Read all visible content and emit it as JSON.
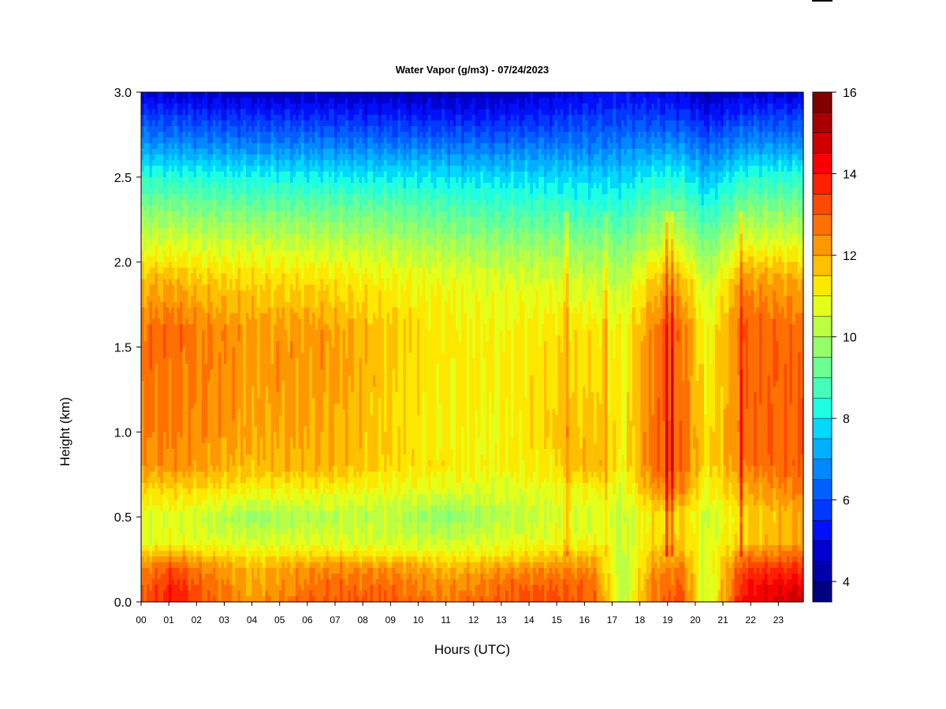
{
  "chart_data": {
    "type": "heatmap",
    "title": "Water Vapor (g/m3) - 07/24/2023",
    "xlabel": "Hours (UTC)",
    "ylabel": "Height (km)",
    "x_ticks": [
      "00",
      "01",
      "02",
      "03",
      "04",
      "05",
      "06",
      "07",
      "08",
      "09",
      "10",
      "11",
      "12",
      "13",
      "14",
      "15",
      "16",
      "17",
      "18",
      "19",
      "20",
      "21",
      "22",
      "23"
    ],
    "y_ticks": [
      "0.0",
      "0.5",
      "1.0",
      "1.5",
      "2.0",
      "2.5",
      "3.0"
    ],
    "xlim": [
      0,
      23.9
    ],
    "ylim": [
      0,
      3.0
    ],
    "colorbar": {
      "ticks": [
        "4",
        "6",
        "8",
        "10",
        "12",
        "14",
        "16"
      ],
      "min": 3.5,
      "max": 16,
      "levels": 25,
      "colors": [
        "#000080",
        "#0000a8",
        "#0000d0",
        "#0010f8",
        "#0038ff",
        "#0060ff",
        "#0088ff",
        "#00b0ff",
        "#00d8ff",
        "#1cffe2",
        "#44ffba",
        "#6cff92",
        "#94ff6a",
        "#bcff42",
        "#e4ff1a",
        "#ffe800",
        "#ffc000",
        "#ff9800",
        "#ff7000",
        "#ff4800",
        "#ff2000",
        "#f80000",
        "#d00000",
        "#a80000",
        "#800000"
      ]
    },
    "profile_heights_km": [
      0.0,
      0.1,
      0.2,
      0.28,
      0.35,
      0.5,
      0.65,
      0.8,
      1.0,
      1.3,
      1.6,
      1.9,
      2.1,
      2.3,
      2.5,
      2.7,
      2.85,
      3.0
    ],
    "profiles": [
      {
        "hour": 0,
        "values": [
          13.0,
          12.8,
          12.4,
          11.6,
          10.8,
          10.6,
          11.3,
          12.2,
          12.5,
          12.6,
          12.7,
          11.8,
          10.6,
          9.6,
          8.4,
          6.8,
          5.8,
          4.8
        ]
      },
      {
        "hour": 1.2,
        "values": [
          14.0,
          13.8,
          13.2,
          12.0,
          10.9,
          10.7,
          11.4,
          12.4,
          12.6,
          12.7,
          12.9,
          11.9,
          10.7,
          9.6,
          8.4,
          6.8,
          5.8,
          4.8
        ]
      },
      {
        "hour": 2,
        "values": [
          13.2,
          13.0,
          12.6,
          11.6,
          10.8,
          10.5,
          11.3,
          12.2,
          12.4,
          12.5,
          12.6,
          11.6,
          10.6,
          9.5,
          8.3,
          6.7,
          5.7,
          4.7
        ]
      },
      {
        "hour": 4,
        "values": [
          12.2,
          12.0,
          11.8,
          11.2,
          10.6,
          9.8,
          11.0,
          11.8,
          12.0,
          12.2,
          12.2,
          11.4,
          10.5,
          9.4,
          8.2,
          6.6,
          5.6,
          4.6
        ]
      },
      {
        "hour": 6.5,
        "values": [
          13.0,
          12.8,
          12.4,
          11.4,
          10.7,
          10.2,
          11.0,
          12.0,
          12.0,
          12.2,
          12.2,
          11.3,
          10.4,
          9.3,
          8.1,
          6.6,
          5.6,
          4.6
        ]
      },
      {
        "hour": 9,
        "values": [
          13.0,
          12.8,
          12.3,
          11.2,
          10.6,
          10.2,
          10.8,
          11.4,
          11.5,
          11.6,
          11.6,
          11.0,
          10.2,
          9.2,
          8.0,
          6.5,
          5.5,
          4.5
        ]
      },
      {
        "hour": 11,
        "values": [
          12.6,
          12.3,
          11.8,
          11.0,
          10.5,
          9.6,
          10.6,
          11.2,
          11.0,
          11.1,
          11.2,
          10.8,
          10.0,
          9.0,
          7.9,
          6.4,
          5.4,
          4.4
        ]
      },
      {
        "hour": 13,
        "values": [
          13.0,
          12.8,
          12.2,
          11.2,
          10.7,
          10.2,
          10.6,
          11.0,
          11.0,
          11.0,
          11.0,
          10.6,
          9.8,
          8.8,
          7.8,
          6.4,
          5.4,
          4.5
        ]
      },
      {
        "hour": 15,
        "values": [
          13.2,
          13.0,
          12.4,
          11.6,
          10.9,
          10.6,
          10.8,
          11.3,
          11.6,
          11.4,
          11.3,
          10.6,
          9.8,
          8.8,
          7.8,
          6.5,
          5.6,
          4.8
        ]
      },
      {
        "hour": 16.3,
        "values": [
          13.0,
          12.8,
          12.4,
          11.8,
          11.0,
          10.6,
          11.0,
          12.0,
          11.8,
          11.4,
          11.2,
          10.4,
          9.6,
          8.6,
          7.7,
          6.5,
          5.8,
          5.0
        ]
      },
      {
        "hour": 17.4,
        "values": [
          10.2,
          10.0,
          10.0,
          10.2,
          10.4,
          10.3,
          10.6,
          11.0,
          11.0,
          11.0,
          10.9,
          10.2,
          9.5,
          8.6,
          7.7,
          6.6,
          5.9,
          5.2
        ]
      },
      {
        "hour": 18.5,
        "values": [
          12.8,
          12.6,
          12.2,
          11.8,
          11.4,
          11.2,
          12.2,
          12.8,
          12.8,
          12.6,
          12.6,
          11.6,
          10.4,
          9.4,
          8.2,
          6.8,
          5.8,
          5.0
        ]
      },
      {
        "hour": 19.5,
        "values": [
          13.2,
          13.0,
          12.6,
          12.0,
          11.6,
          11.4,
          12.4,
          13.0,
          13.0,
          12.9,
          12.8,
          11.8,
          10.5,
          9.4,
          8.2,
          6.8,
          5.8,
          4.9
        ]
      },
      {
        "hour": 20.4,
        "values": [
          10.2,
          10.2,
          10.4,
          10.6,
          10.6,
          10.4,
          10.8,
          11.2,
          11.2,
          11.0,
          10.8,
          10.2,
          9.4,
          8.4,
          7.4,
          6.2,
          5.2,
          4.4
        ]
      },
      {
        "hour": 21.8,
        "values": [
          14.2,
          14.0,
          13.4,
          12.4,
          11.6,
          11.4,
          12.0,
          12.6,
          12.8,
          12.8,
          13.0,
          12.2,
          10.8,
          9.6,
          8.4,
          6.8,
          5.8,
          4.8
        ]
      },
      {
        "hour": 23.9,
        "values": [
          15.0,
          14.4,
          13.6,
          12.8,
          12.2,
          12.0,
          12.6,
          13.0,
          13.0,
          13.0,
          12.8,
          12.0,
          10.8,
          9.6,
          8.4,
          6.8,
          5.8,
          4.8
        ]
      }
    ],
    "spikes": [
      {
        "hour": 15.35,
        "delta": 1.6
      },
      {
        "hour": 16.75,
        "delta": 1.4
      },
      {
        "hour": 18.95,
        "delta": 2.2
      },
      {
        "hour": 19.15,
        "delta": 2.0
      },
      {
        "hour": 21.65,
        "delta": 1.6
      }
    ]
  }
}
